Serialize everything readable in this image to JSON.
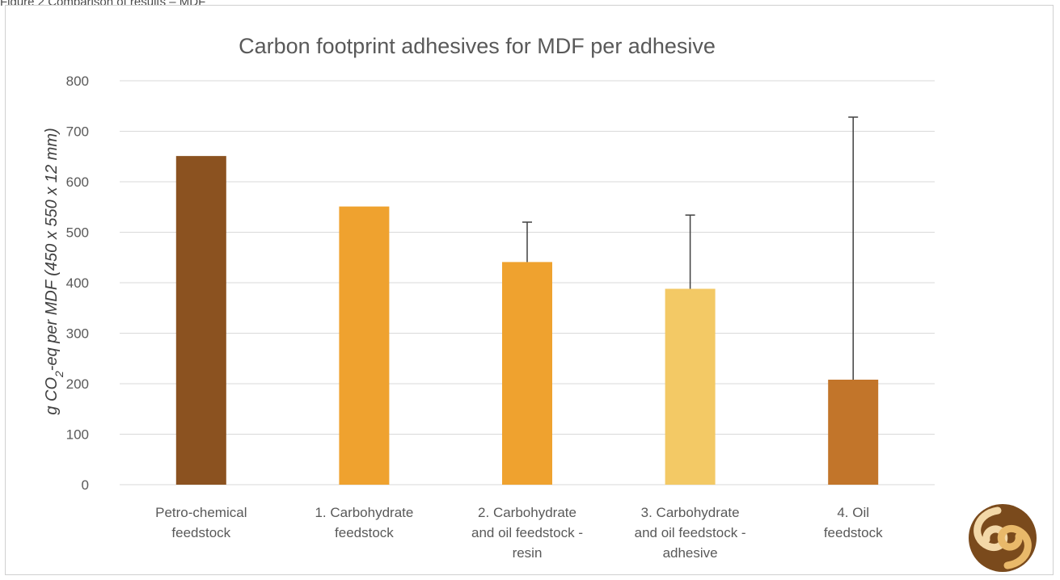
{
  "caption": "Figure 2 Comparison of results – MDF",
  "chart_data": {
    "type": "bar",
    "title": "Carbon footprint adhesives for MDF per adhesive",
    "ylabel_parts": [
      "g CO",
      "2",
      "-eq per MDF (450 x 550 x 12 mm)"
    ],
    "ylim": [
      0,
      800
    ],
    "yticks": [
      0,
      100,
      200,
      300,
      400,
      500,
      600,
      700,
      800
    ],
    "grid": true,
    "legend": "none",
    "categories": [
      [
        "Petro-chemical",
        "feedstock"
      ],
      [
        "1. Carbohydrate",
        "feedstock"
      ],
      [
        "2. Carbohydrate",
        "and oil feedstock -",
        "resin"
      ],
      [
        "3. Carbohydrate",
        "and oil feedstock -",
        "adhesive"
      ],
      [
        "4. Oil",
        "feedstock"
      ]
    ],
    "values": [
      651,
      551,
      441,
      388,
      208
    ],
    "error_upper": [
      null,
      null,
      520,
      534,
      728
    ],
    "colors": [
      "#8B5220",
      "#EFA22F",
      "#EFA22F",
      "#F3C965",
      "#C2752A"
    ]
  },
  "logo": {
    "name": "logo-icon"
  }
}
